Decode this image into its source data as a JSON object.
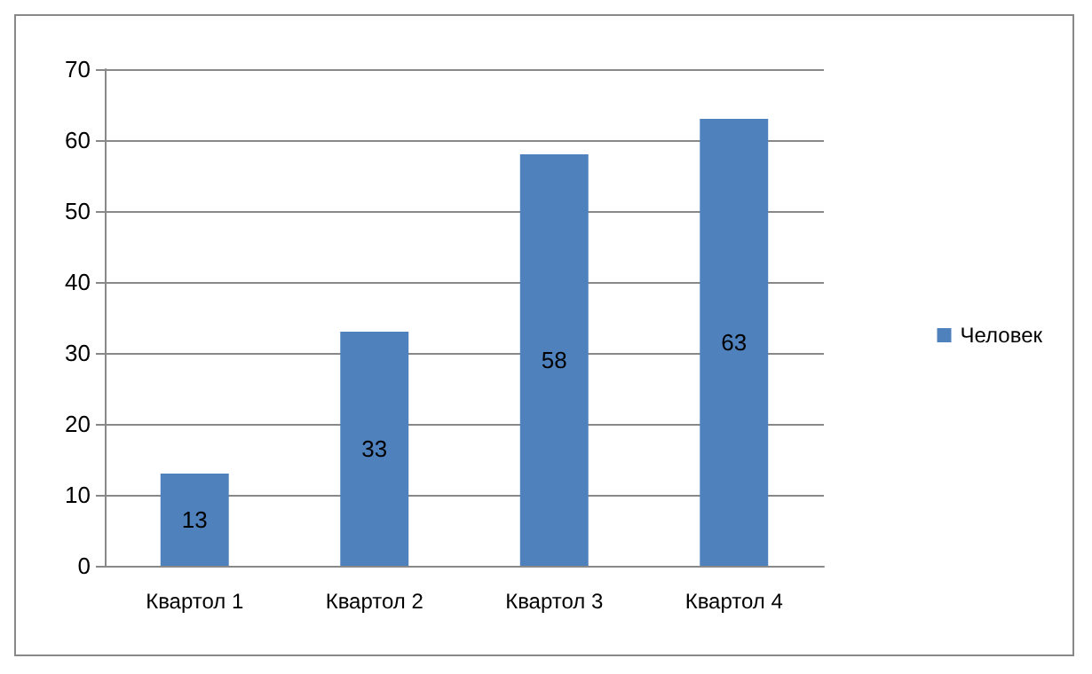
{
  "chart_data": {
    "type": "bar",
    "categories": [
      "Квартол 1",
      "Квартол 2",
      "Квартол 3",
      "Квартол 4"
    ],
    "series": [
      {
        "name": "Человек",
        "color": "#4f81bd",
        "values": [
          13,
          33,
          58,
          63
        ]
      }
    ],
    "ylim": [
      0,
      70
    ],
    "yticks": [
      0,
      10,
      20,
      30,
      40,
      50,
      60,
      70
    ],
    "grid": "y",
    "legend": "right",
    "data_labels": true
  }
}
